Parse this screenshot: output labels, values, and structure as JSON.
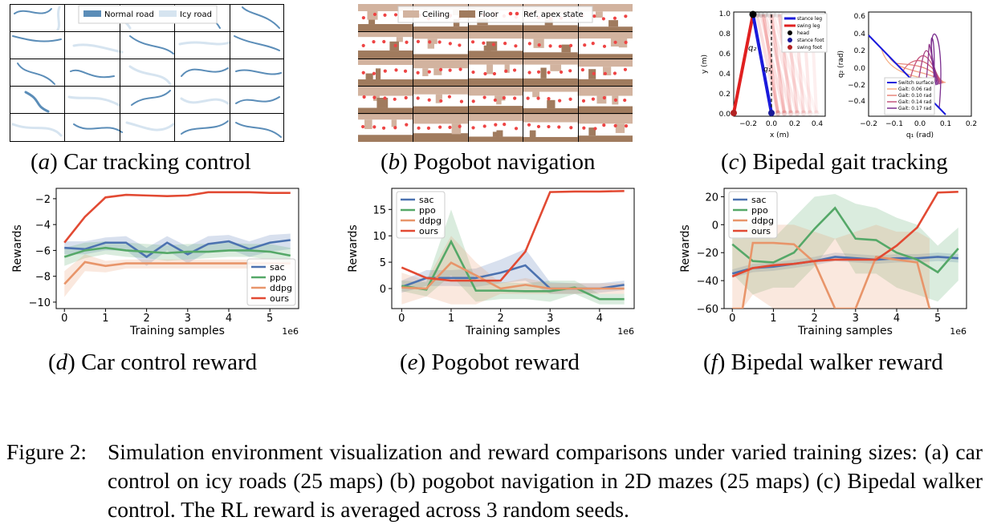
{
  "captions": {
    "a": {
      "label": "a",
      "text": "Car tracking control"
    },
    "b": {
      "label": "b",
      "text": "Pogobot navigation"
    },
    "c": {
      "label": "c",
      "text": "Bipedal gait tracking"
    },
    "d": {
      "label": "d",
      "text": "Car control reward"
    },
    "e": {
      "label": "e",
      "text": "Pogobot reward"
    },
    "f": {
      "label": "f",
      "text": "Bipedal walker reward"
    }
  },
  "figure_caption": {
    "label": "Figure 2:",
    "text": "Simulation environment visualization and reward comparisons under varied training sizes: (a) car control on icy roads (25 maps) (b) pogobot navigation in 2D mazes (25 maps) (c) Bipedal walker control. The RL reward is averaged across 3 random seeds."
  },
  "panel_a": {
    "legend": [
      "Normal road",
      "Icy road"
    ],
    "colors": {
      "normal": "#5b8db8",
      "icy": "#d6e4f0"
    }
  },
  "panel_b": {
    "legend": [
      "Ceiling",
      "Floor",
      "Ref. apex state"
    ],
    "colors": {
      "ceiling": "#d2b39f",
      "floor": "#a07b5e",
      "apex": "#ee4444"
    }
  },
  "panel_c": {
    "left": {
      "xlabel": "x (m)",
      "ylabel": "y (m)",
      "xticks": [
        "−0.2",
        "0.0",
        "0.2",
        "0.4"
      ],
      "yticks": [
        "0.0",
        "0.2",
        "0.4",
        "0.6",
        "0.8",
        "1.0"
      ],
      "annotations": [
        "q₂",
        "q₁"
      ],
      "legend": [
        "stance leg",
        "swing leg",
        "head",
        "stance foot",
        "swing foot"
      ],
      "colors": {
        "stance": "#1a1adb",
        "swing": "#e02020",
        "head": "#000000",
        "stance_foot": "#1a1a99",
        "swing_foot": "#b22222"
      }
    },
    "right": {
      "xlabel": "q₁ (rad)",
      "ylabel": "q₂ (rad)",
      "xticks": [
        "−0.2",
        "−0.1",
        "0.0",
        "0.1",
        "0.2"
      ],
      "yticks": [
        "−0.4",
        "−0.2",
        "0.0",
        "0.2",
        "0.4",
        "0.6"
      ],
      "legend": [
        "Switch surface",
        "Gait: 0.06 rad",
        "Gait: 0.10 rad",
        "Gait: 0.14 rad",
        "Gait: 0.17 rad"
      ],
      "gait_colors": [
        "#f6b089",
        "#e8867a",
        "#c4557e",
        "#7a2d8e"
      ]
    }
  },
  "chart_data": [
    {
      "type": "line",
      "id": "d",
      "xlabel": "Training samples",
      "ylabel": "Rewards",
      "xscale_label": "1e6",
      "xlim": [
        -0.2,
        5.7
      ],
      "ylim": [
        -10.5,
        -1.2
      ],
      "xticks": [
        0,
        1,
        2,
        3,
        4,
        5
      ],
      "yticks": [
        -10,
        -8,
        -6,
        -4,
        -2
      ],
      "legend_position": "bottom-right",
      "series": [
        {
          "name": "sac",
          "color": "#4c72b0",
          "x": [
            0,
            0.5,
            1,
            1.5,
            2,
            2.5,
            3,
            3.5,
            4,
            4.5,
            5,
            5.5
          ],
          "values": [
            -5.8,
            -5.9,
            -5.4,
            -5.4,
            -6.5,
            -5.4,
            -6.3,
            -5.5,
            -5.3,
            -5.9,
            -5.4,
            -5.2
          ],
          "band_low": [
            -6.3,
            -6.3,
            -6.0,
            -6.0,
            -7.2,
            -6.0,
            -7.0,
            -6.1,
            -5.9,
            -6.5,
            -6.1,
            -5.9
          ],
          "band_high": [
            -5.3,
            -5.3,
            -5.0,
            -4.9,
            -5.8,
            -4.9,
            -5.7,
            -4.9,
            -4.8,
            -5.3,
            -4.8,
            -4.7
          ]
        },
        {
          "name": "ppo",
          "color": "#55a868",
          "x": [
            0,
            0.5,
            1,
            1.5,
            2,
            2.5,
            3,
            3.5,
            4,
            4.5,
            5,
            5.5
          ],
          "values": [
            -6.5,
            -6.0,
            -5.8,
            -6.0,
            -6.1,
            -6.2,
            -6.1,
            -6.1,
            -6.0,
            -6.0,
            -6.1,
            -6.4
          ],
          "band_low": [
            -7.2,
            -6.6,
            -6.3,
            -6.5,
            -6.6,
            -6.8,
            -6.7,
            -6.6,
            -6.5,
            -6.5,
            -6.7,
            -7.0
          ],
          "band_high": [
            -5.8,
            -5.4,
            -5.3,
            -5.4,
            -5.5,
            -5.6,
            -5.5,
            -5.5,
            -5.4,
            -5.5,
            -5.5,
            -5.8
          ]
        },
        {
          "name": "ddpg",
          "color": "#e8956a",
          "x": [
            0,
            0.5,
            1,
            1.5,
            2,
            2.5,
            3,
            3.5,
            4,
            4.5,
            5,
            5.5
          ],
          "values": [
            -8.6,
            -6.9,
            -7.2,
            -7.0,
            -7.0,
            -7.0,
            -7.0,
            -7.0,
            -7.0,
            -7.0,
            -7.0,
            -7.0
          ],
          "band_low": [
            -9.6,
            -7.6,
            -7.7,
            -7.4,
            -7.4,
            -7.4,
            -7.4,
            -7.4,
            -7.4,
            -7.4,
            -7.4,
            -7.4
          ],
          "band_high": [
            -7.6,
            -6.3,
            -6.8,
            -6.7,
            -6.7,
            -6.7,
            -6.7,
            -6.7,
            -6.7,
            -6.7,
            -6.7,
            -6.7
          ]
        },
        {
          "name": "ours",
          "color": "#e24a33",
          "x": [
            0,
            0.5,
            1,
            1.5,
            2,
            2.5,
            3,
            3.5,
            4,
            4.5,
            5,
            5.5
          ],
          "values": [
            -5.4,
            -3.4,
            -1.9,
            -1.7,
            -1.75,
            -1.8,
            -1.75,
            -1.5,
            -1.5,
            -1.5,
            -1.55,
            -1.55
          ]
        }
      ]
    },
    {
      "type": "line",
      "id": "e",
      "xlabel": "Training samples",
      "ylabel": "Rewards",
      "xscale_label": "1e6",
      "xlim": [
        -0.2,
        4.7
      ],
      "ylim": [
        -3.8,
        19.0
      ],
      "xticks": [
        0,
        1,
        2,
        3,
        4
      ],
      "yticks": [
        0,
        5,
        10,
        15
      ],
      "legend_position": "top-left",
      "series": [
        {
          "name": "sac",
          "color": "#4c72b0",
          "x": [
            0,
            0.5,
            1,
            1.5,
            2,
            2.5,
            3,
            3.5,
            4,
            4.5
          ],
          "values": [
            0.3,
            2.0,
            2.0,
            2.0,
            3.0,
            4.4,
            0.0,
            0.0,
            0.0,
            0.7
          ],
          "band_low": [
            -0.8,
            0.5,
            0.5,
            0.3,
            1.0,
            1.5,
            -1.0,
            -1.0,
            -0.8,
            -0.3
          ],
          "band_high": [
            1.5,
            3.5,
            3.5,
            3.8,
            5.5,
            7.5,
            1.2,
            1.0,
            1.0,
            1.5
          ]
        },
        {
          "name": "ppo",
          "color": "#55a868",
          "x": [
            0,
            0.5,
            1,
            1.5,
            2,
            2.5,
            3,
            3.5,
            4,
            4.5
          ],
          "values": [
            0.5,
            -0.2,
            8.9,
            -0.4,
            -0.4,
            -0.5,
            -0.5,
            0.2,
            -2.0,
            -2.0
          ],
          "band_low": [
            -0.5,
            -1.5,
            2.5,
            -2.5,
            -2.0,
            -2.0,
            -2.5,
            -1.0,
            -3.0,
            -3.0
          ],
          "band_high": [
            1.5,
            1.2,
            15.0,
            1.5,
            1.2,
            1.0,
            1.5,
            1.5,
            -1.0,
            -1.0
          ]
        },
        {
          "name": "ddpg",
          "color": "#e8956a",
          "x": [
            0,
            0.5,
            1,
            1.5,
            2,
            2.5,
            3,
            3.5,
            4,
            4.5
          ],
          "values": [
            0.2,
            0.0,
            4.9,
            2.5,
            0.0,
            0.7,
            0.0,
            0.0,
            0.0,
            0.0
          ],
          "band_low": [
            -3.0,
            -1.5,
            -3.0,
            -3.0,
            -1.0,
            -1.0,
            -1.0,
            -1.0,
            -1.0,
            -1.0
          ],
          "band_high": [
            3.0,
            1.5,
            10.0,
            5.0,
            1.0,
            2.0,
            1.0,
            1.0,
            1.0,
            1.0
          ]
        },
        {
          "name": "ours",
          "color": "#e24a33",
          "x": [
            0,
            0.5,
            1,
            1.5,
            2,
            2.5,
            3,
            3.5,
            4,
            4.5
          ],
          "values": [
            4.0,
            2.0,
            1.5,
            1.5,
            1.5,
            7.0,
            18.3,
            18.4,
            18.4,
            18.5
          ]
        }
      ]
    },
    {
      "type": "line",
      "id": "f",
      "xlabel": "Training samples",
      "ylabel": "Rewards",
      "xscale_label": "1e6",
      "xlim": [
        -0.2,
        5.7
      ],
      "ylim": [
        -60,
        26
      ],
      "xticks": [
        0,
        1,
        2,
        3,
        4,
        5
      ],
      "yticks": [
        -60,
        -40,
        -20,
        0,
        20
      ],
      "legend_position": "top-left",
      "series": [
        {
          "name": "sac",
          "color": "#4c72b0",
          "x": [
            0,
            0.5,
            1,
            1.5,
            2,
            2.5,
            3,
            3.5,
            4,
            4.5,
            5,
            5.5
          ],
          "values": [
            -35,
            -31,
            -30,
            -28,
            -26,
            -23,
            -24,
            -25,
            -24,
            -24,
            -23,
            -24
          ],
          "band_low": [
            -38,
            -34,
            -33,
            -31,
            -29,
            -26,
            -27,
            -28,
            -27,
            -27,
            -26,
            -27
          ],
          "band_high": [
            -32,
            -28,
            -27,
            -25,
            -23,
            -20,
            -21,
            -22,
            -21,
            -21,
            -20,
            -21
          ]
        },
        {
          "name": "ppo",
          "color": "#55a868",
          "x": [
            0,
            0.5,
            1,
            1.5,
            2,
            2.5,
            3,
            3.5,
            4,
            4.5,
            5,
            5.5
          ],
          "values": [
            -14,
            -26,
            -27,
            -20,
            -3,
            12,
            -10,
            -11,
            -20,
            -25,
            -34,
            -17
          ],
          "band_low": [
            -35,
            -50,
            -45,
            -45,
            -30,
            -10,
            -35,
            -35,
            -45,
            -50,
            -55,
            -40
          ],
          "band_high": [
            5,
            0,
            -10,
            5,
            20,
            22,
            15,
            12,
            5,
            0,
            -15,
            -2
          ]
        },
        {
          "name": "ddpg",
          "color": "#e8956a",
          "x": [
            0,
            0.25,
            0.5,
            1,
            1.5,
            2,
            2.5,
            3,
            3.5,
            4,
            4.5,
            4.8
          ],
          "values": [
            -60,
            -60,
            -13,
            -13,
            -14,
            -27,
            -60,
            -60,
            -23,
            -25,
            -27,
            -60
          ],
          "band_low": [
            -60,
            -60,
            -50,
            -60,
            -60,
            -60,
            -60,
            -60,
            -60,
            -60,
            -60,
            -60
          ],
          "band_high": [
            -10,
            -10,
            5,
            0,
            0,
            -5,
            -10,
            -5,
            0,
            -5,
            -5,
            -10
          ]
        },
        {
          "name": "ours",
          "color": "#e24a33",
          "x": [
            0,
            0.5,
            1,
            1.5,
            2,
            2.5,
            3,
            3.5,
            4,
            4.5,
            5,
            5.5
          ],
          "values": [
            -37,
            -31,
            -29,
            -28,
            -26,
            -25,
            -25,
            -25,
            -15,
            -2,
            23,
            23.5
          ]
        }
      ]
    }
  ]
}
